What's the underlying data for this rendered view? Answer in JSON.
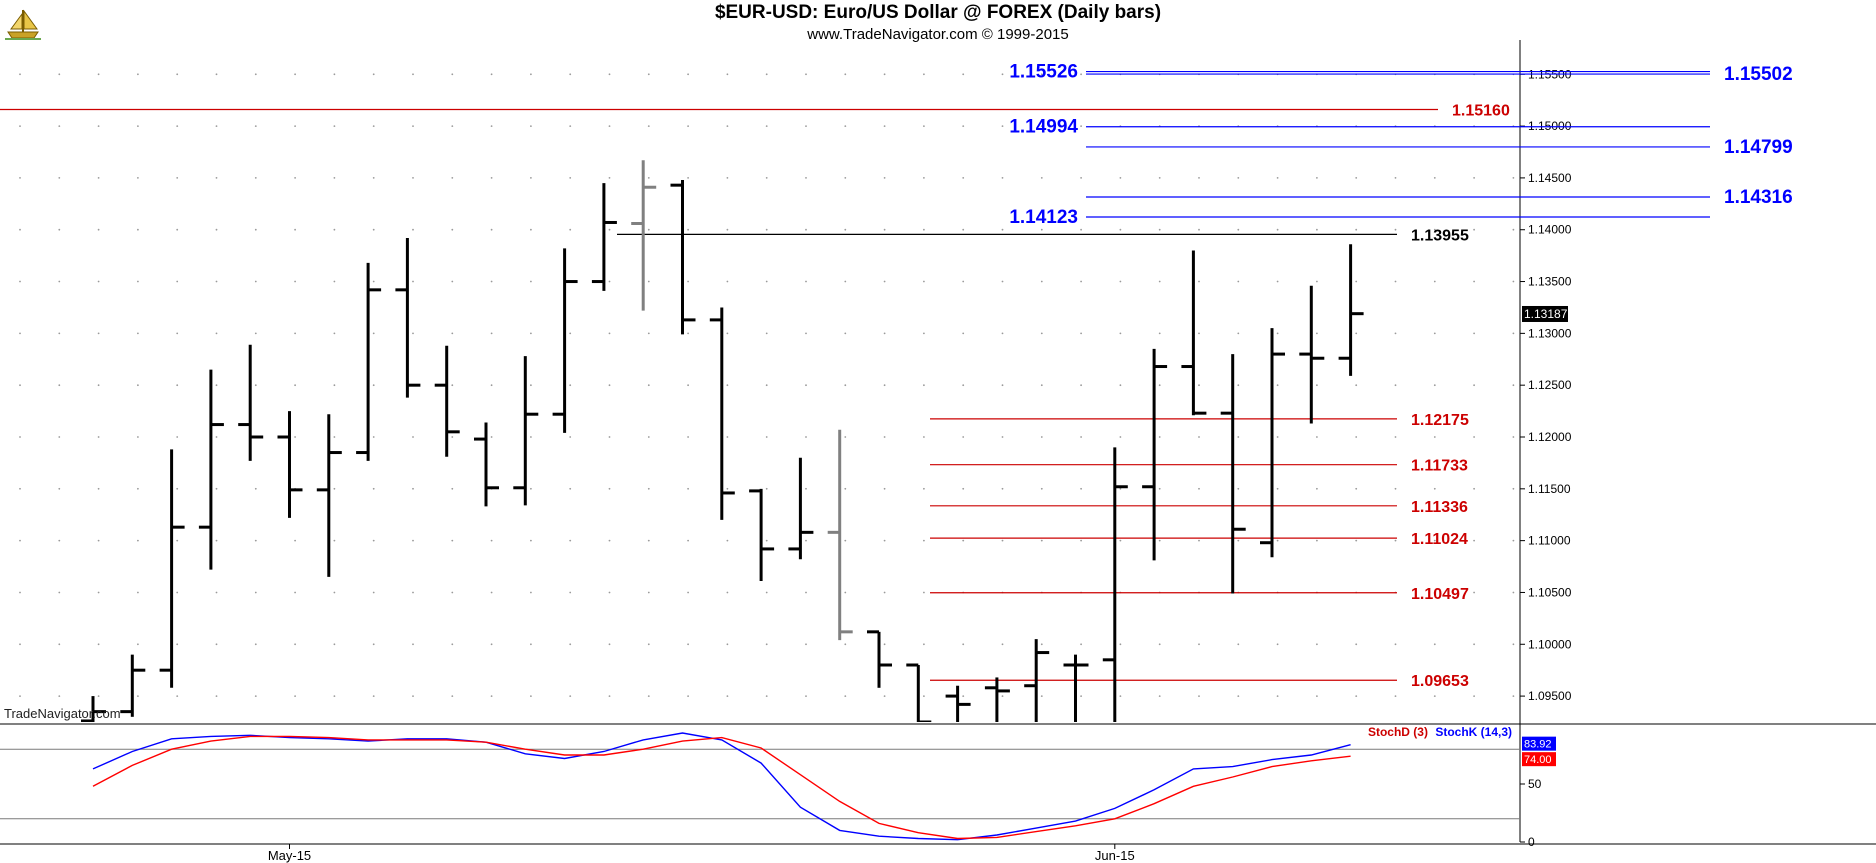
{
  "header": {
    "title": "$EUR-USD:  Euro/US Dollar @ FOREX  (Daily bars)",
    "subtitle": "www.TradeNavigator.com © 1999-2015"
  },
  "watermark": "TradeNavigator.com",
  "indicator_legend": {
    "stoch_d": "StochD (3)",
    "stoch_k": "StochK (14,3)"
  },
  "colors": {
    "background": "#ffffff",
    "bars": "#000000",
    "bars_gray": "#808080",
    "level_blue": "#0000ff",
    "level_red": "#cc0000",
    "level_black": "#000000",
    "stoch_k": "#0000ff",
    "stoch_d": "#ff0000",
    "grid_dots": "#9a9a9a",
    "last_price_box": "#000000"
  },
  "chart_data": [
    {
      "type": "ohlc",
      "title": "$EUR-USD:  Euro/US Dollar @ FOREX  (Daily bars)",
      "ylim": [
        1.0925,
        1.1585
      ],
      "y_ticks": [
        1.095,
        1.1,
        1.105,
        1.11,
        1.115,
        1.12,
        1.125,
        1.13,
        1.135,
        1.14,
        1.145,
        1.15,
        1.155
      ],
      "y_tick_labels": [
        "1.09500",
        "1.10000",
        "1.10500",
        "1.11000",
        "1.11500",
        "1.12000",
        "1.12500",
        "1.13000",
        "1.13500",
        "1.14000",
        "1.14500",
        "1.15000",
        "1.15500"
      ],
      "x_labels": [
        {
          "bar": 5,
          "label": "May-15"
        },
        {
          "bar": 26,
          "label": "Jun-15"
        }
      ],
      "last_price": "1.13187",
      "grid": "dotted",
      "bars": [
        {
          "o": 1.0926,
          "h": 1.095,
          "l": 1.091,
          "c": 1.0935
        },
        {
          "o": 1.0935,
          "h": 1.099,
          "l": 1.093,
          "c": 1.0975
        },
        {
          "o": 1.0975,
          "h": 1.1188,
          "l": 1.0958,
          "c": 1.1113
        },
        {
          "o": 1.1113,
          "h": 1.1265,
          "l": 1.1072,
          "c": 1.1212
        },
        {
          "o": 1.1212,
          "h": 1.1289,
          "l": 1.1177,
          "c": 1.12
        },
        {
          "o": 1.12,
          "h": 1.1225,
          "l": 1.1122,
          "c": 1.1149
        },
        {
          "o": 1.1149,
          "h": 1.1222,
          "l": 1.1065,
          "c": 1.1185
        },
        {
          "o": 1.1185,
          "h": 1.1368,
          "l": 1.1177,
          "c": 1.1342
        },
        {
          "o": 1.1342,
          "h": 1.1392,
          "l": 1.1238,
          "c": 1.125
        },
        {
          "o": 1.125,
          "h": 1.1288,
          "l": 1.1181,
          "c": 1.1205
        },
        {
          "o": 1.1198,
          "h": 1.1214,
          "l": 1.1133,
          "c": 1.1151
        },
        {
          "o": 1.1151,
          "h": 1.1278,
          "l": 1.1134,
          "c": 1.1222
        },
        {
          "o": 1.1222,
          "h": 1.1382,
          "l": 1.1204,
          "c": 1.135
        },
        {
          "o": 1.135,
          "h": 1.1445,
          "l": 1.1341,
          "c": 1.1407
        },
        {
          "o": 1.1406,
          "h": 1.1467,
          "l": 1.1322,
          "c": 1.1441,
          "gray": true
        },
        {
          "o": 1.1443,
          "h": 1.1448,
          "l": 1.1299,
          "c": 1.1313
        },
        {
          "o": 1.1313,
          "h": 1.1325,
          "l": 1.112,
          "c": 1.1146
        },
        {
          "o": 1.1148,
          "h": 1.115,
          "l": 1.1061,
          "c": 1.1092
        },
        {
          "o": 1.1092,
          "h": 1.118,
          "l": 1.1082,
          "c": 1.1108
        },
        {
          "o": 1.1108,
          "h": 1.1207,
          "l": 1.1004,
          "c": 1.1012,
          "gray": true
        },
        {
          "o": 1.1012,
          "h": 1.1012,
          "l": 1.0958,
          "c": 1.098
        },
        {
          "o": 1.098,
          "h": 1.098,
          "l": 1.0925,
          "c": 1.0925
        },
        {
          "o": 1.095,
          "h": 1.096,
          "l": 1.0925,
          "c": 1.0942
        },
        {
          "o": 1.0958,
          "h": 1.0968,
          "l": 1.0925,
          "c": 1.0955
        },
        {
          "o": 1.096,
          "h": 1.1005,
          "l": 1.0925,
          "c": 1.0992
        },
        {
          "o": 1.098,
          "h": 1.099,
          "l": 1.0925,
          "c": 1.098
        },
        {
          "o": 1.0985,
          "h": 1.119,
          "l": 1.0925,
          "c": 1.1152
        },
        {
          "o": 1.1152,
          "h": 1.1285,
          "l": 1.1081,
          "c": 1.1268
        },
        {
          "o": 1.1268,
          "h": 1.138,
          "l": 1.1221,
          "c": 1.1223
        },
        {
          "o": 1.1223,
          "h": 1.128,
          "l": 1.1049,
          "c": 1.1111
        },
        {
          "o": 1.1098,
          "h": 1.1305,
          "l": 1.1084,
          "c": 1.128
        },
        {
          "o": 1.128,
          "h": 1.1346,
          "l": 1.1213,
          "c": 1.1276
        },
        {
          "o": 1.1276,
          "h": 1.1386,
          "l": 1.1259,
          "c": 1.1319
        }
      ],
      "levels": [
        {
          "value": 1.15526,
          "label": "1.15526",
          "color": "blue",
          "side": "left-of-line"
        },
        {
          "value": 1.15502,
          "label": "1.15502",
          "color": "blue",
          "side": "right-of-line"
        },
        {
          "value": 1.1516,
          "label": "1.15160",
          "color": "red",
          "side": "right-of-line"
        },
        {
          "value": 1.14994,
          "label": "1.14994",
          "color": "blue",
          "side": "left-of-line"
        },
        {
          "value": 1.14799,
          "label": "1.14799",
          "color": "blue",
          "side": "right-of-line"
        },
        {
          "value": 1.14316,
          "label": "1.14316",
          "color": "blue",
          "side": "right-of-line"
        },
        {
          "value": 1.14123,
          "label": "1.14123",
          "color": "blue",
          "side": "left-of-line"
        },
        {
          "value": 1.13955,
          "label": "1.13955",
          "color": "black",
          "side": "right-of-line"
        },
        {
          "value": 1.12175,
          "label": "1.12175",
          "color": "red",
          "side": "right-of-line"
        },
        {
          "value": 1.11733,
          "label": "1.11733",
          "color": "red",
          "side": "right-of-line"
        },
        {
          "value": 1.11336,
          "label": "1.11336",
          "color": "red",
          "side": "right-of-line"
        },
        {
          "value": 1.11024,
          "label": "1.11024",
          "color": "red",
          "side": "right-of-line"
        },
        {
          "value": 1.10497,
          "label": "1.10497",
          "color": "red",
          "side": "right-of-line"
        },
        {
          "value": 1.09653,
          "label": "1.09653",
          "color": "red",
          "side": "right-of-line"
        }
      ]
    },
    {
      "type": "line",
      "ylim": [
        0,
        100
      ],
      "y_ticks": [
        0,
        50
      ],
      "y_tick_labels": [
        "0",
        "50"
      ],
      "reference_lines": [
        20,
        80
      ],
      "last_values": {
        "stoch_k": "83.92",
        "stoch_d": "74.00"
      },
      "series": [
        {
          "name": "StochK (14,3)",
          "color": "blue",
          "values": [
            63,
            78,
            89,
            91,
            92,
            90,
            89,
            87,
            89,
            89,
            86,
            76,
            72,
            78,
            88,
            94,
            88,
            68,
            30,
            10,
            5,
            3,
            2,
            6,
            12,
            18,
            29,
            45,
            63,
            65,
            71,
            75,
            83.92
          ]
        },
        {
          "name": "StochD (3)",
          "color": "red",
          "values": [
            48,
            66,
            80,
            87,
            91,
            91,
            90,
            88,
            88,
            88,
            86,
            80,
            75,
            75,
            80,
            87,
            90,
            81,
            58,
            35,
            16,
            8,
            3,
            4,
            9,
            14,
            20,
            33,
            48,
            56,
            65,
            70,
            74.0
          ]
        }
      ]
    }
  ]
}
